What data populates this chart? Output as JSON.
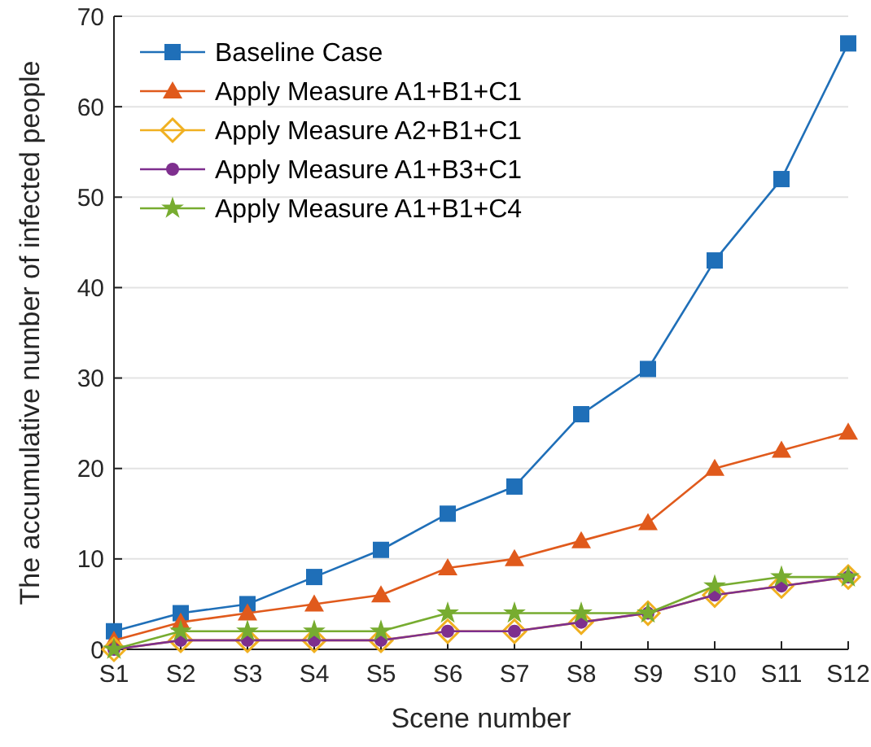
{
  "chart_data": {
    "type": "line",
    "xlabel": "Scene number",
    "ylabel": "The accumulative number of infected people",
    "categories": [
      "S1",
      "S2",
      "S3",
      "S4",
      "S5",
      "S6",
      "S7",
      "S8",
      "S9",
      "S10",
      "S11",
      "S12"
    ],
    "series": [
      {
        "name": "Baseline Case",
        "color": "#1f6fb8",
        "marker": "square",
        "values": [
          2,
          4,
          5,
          8,
          11,
          15,
          18,
          26,
          31,
          43,
          52,
          67
        ]
      },
      {
        "name": "Apply Measure A1+B1+C1",
        "color": "#e05a1c",
        "marker": "triangle",
        "values": [
          1,
          3,
          4,
          5,
          6,
          9,
          10,
          12,
          14,
          20,
          22,
          24
        ]
      },
      {
        "name": "Apply Measure A2+B1+C1",
        "color": "#f0b020",
        "marker": "diamond",
        "values": [
          0,
          1,
          1,
          1,
          1,
          2,
          2,
          3,
          4,
          6,
          7,
          8
        ]
      },
      {
        "name": "Apply Measure A1+B3+C1",
        "color": "#7e2f8e",
        "marker": "circle",
        "values": [
          0,
          1,
          1,
          1,
          1,
          2,
          2,
          3,
          4,
          6,
          7,
          8
        ]
      },
      {
        "name": "Apply Measure A1+B1+C4",
        "color": "#77ac30",
        "marker": "star",
        "values": [
          0,
          2,
          2,
          2,
          2,
          4,
          4,
          4,
          4,
          7,
          8,
          8
        ]
      }
    ],
    "ylim": [
      0,
      70
    ],
    "yticks": [
      0,
      10,
      20,
      30,
      40,
      50,
      60,
      70
    ],
    "grid": "y",
    "legend": "top left"
  }
}
